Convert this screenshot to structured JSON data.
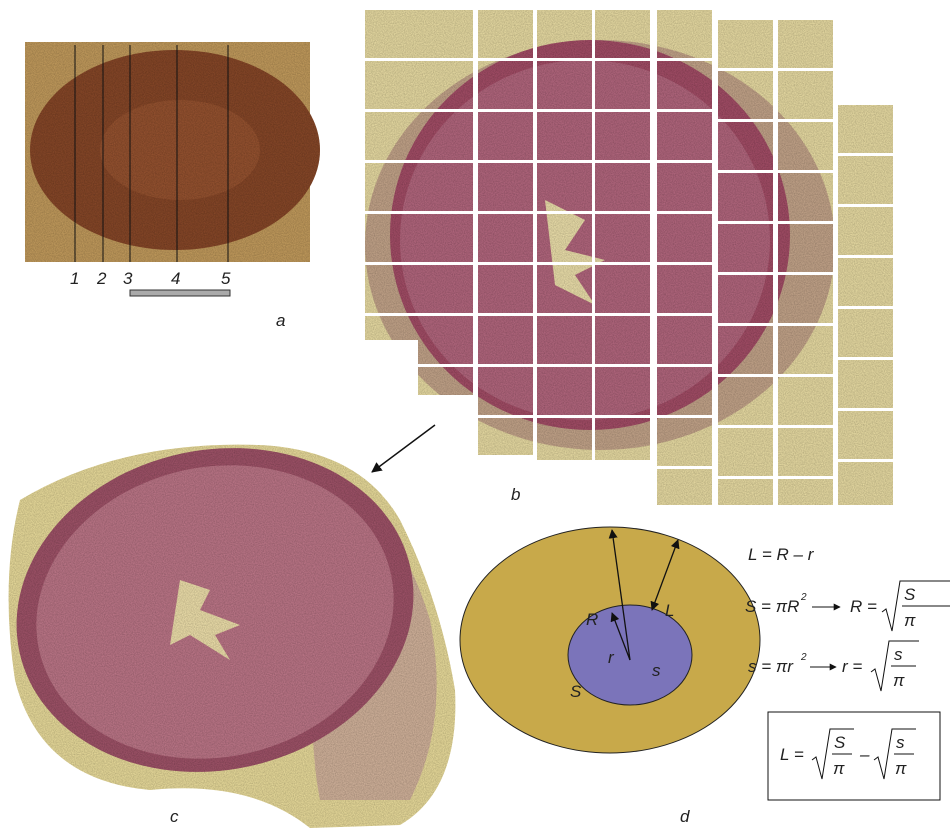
{
  "panel_a": {
    "section_numbers": [
      "1",
      "2",
      "3",
      "4",
      "5"
    ],
    "label": "a"
  },
  "panel_b": {
    "label": "b"
  },
  "panel_c": {
    "label": "c"
  },
  "panel_d": {
    "label": "d",
    "diagram_labels": {
      "R": "R",
      "L": "L",
      "r": "r",
      "s": "s",
      "S": "S"
    },
    "formula_1": "L = R – r",
    "formula_2": {
      "lhs": "S = πR",
      "sup": "2",
      "rhs": "R =",
      "num": "S",
      "den": "π"
    },
    "formula_3": {
      "lhs": "s = πr",
      "sup": "2",
      "rhs": "r =",
      "num": "s",
      "den": "π"
    },
    "result": {
      "lhs": "L =",
      "num1": "S",
      "den1": "π",
      "op": "–",
      "num2": "s",
      "den2": "π"
    }
  }
}
